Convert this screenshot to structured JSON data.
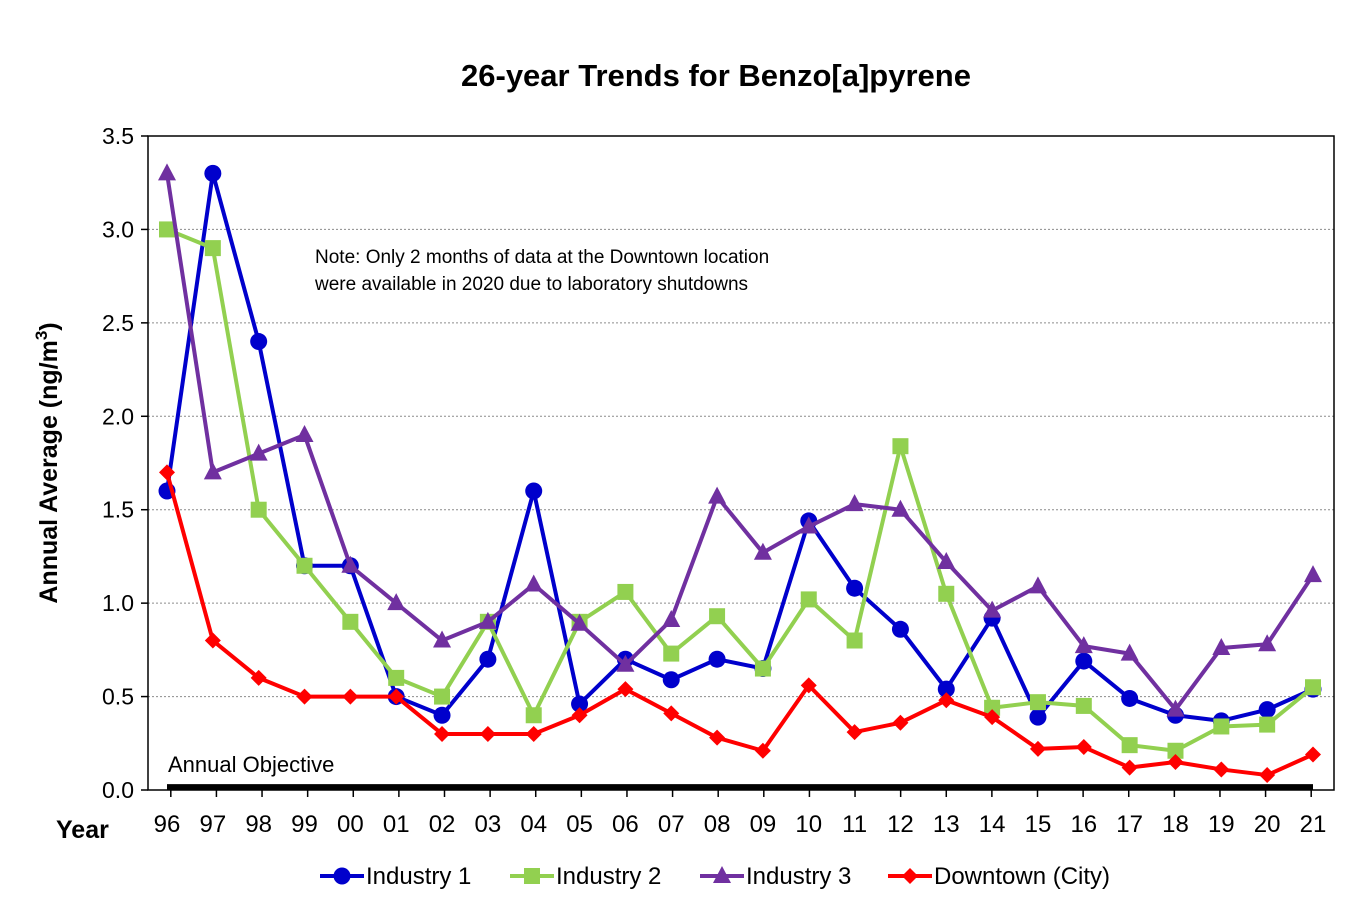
{
  "chart_data": {
    "type": "line",
    "title": "26-year Trends for Benzo[a]pyrene",
    "ylabel": "Annual Average (ng/m",
    "ylabel_superscript": "3",
    "ylabel_suffix": ")",
    "xlabel": "Year",
    "ylim": [
      0,
      3.5
    ],
    "yticks": [
      "0.0",
      "0.5",
      "1.0",
      "1.5",
      "2.0",
      "2.5",
      "3.0",
      "3.5"
    ],
    "grid": "horizontal dashed",
    "legend_position": "bottom",
    "categories": [
      "96",
      "97",
      "98",
      "99",
      "00",
      "01",
      "02",
      "03",
      "04",
      "05",
      "06",
      "07",
      "08",
      "09",
      "10",
      "11",
      "12",
      "13",
      "14",
      "15",
      "16",
      "17",
      "18",
      "19",
      "20",
      "21"
    ],
    "note_lines": [
      "Note: Only 2 months of data at the Downtown location",
      "were available in 2020 due to laboratory shutdowns"
    ],
    "annual_objective": {
      "label": "Annual Objective",
      "value": 0.01
    },
    "series": [
      {
        "name": "Industry 1",
        "color": "#0000CC",
        "marker": "circle",
        "values": [
          1.6,
          3.3,
          2.4,
          1.2,
          1.2,
          0.5,
          0.4,
          0.7,
          1.6,
          0.46,
          0.7,
          0.59,
          0.7,
          0.65,
          1.44,
          1.08,
          0.86,
          0.54,
          0.92,
          0.39,
          0.69,
          0.49,
          0.4,
          0.37,
          0.43,
          0.54
        ]
      },
      {
        "name": "Industry 2",
        "color": "#92D050",
        "marker": "square",
        "values": [
          3.0,
          2.9,
          1.5,
          1.2,
          0.9,
          0.6,
          0.5,
          0.9,
          0.4,
          0.9,
          1.06,
          0.73,
          0.93,
          0.65,
          1.02,
          0.8,
          1.84,
          1.05,
          0.44,
          0.47,
          0.45,
          0.24,
          0.21,
          0.34,
          0.35,
          0.55
        ]
      },
      {
        "name": "Industry 3",
        "color": "#7030A0",
        "marker": "triangle",
        "values": [
          3.3,
          1.7,
          1.8,
          1.9,
          1.2,
          1.0,
          0.8,
          0.9,
          1.1,
          0.89,
          0.67,
          0.91,
          1.57,
          1.27,
          1.41,
          1.53,
          1.5,
          1.22,
          0.96,
          1.09,
          0.77,
          0.73,
          0.43,
          0.76,
          0.78,
          1.15
        ]
      },
      {
        "name": "Downtown (City)",
        "color": "#FF0000",
        "marker": "diamond",
        "values": [
          1.7,
          0.8,
          0.6,
          0.5,
          0.5,
          0.5,
          0.3,
          0.3,
          0.3,
          0.4,
          0.54,
          0.41,
          0.28,
          0.21,
          0.56,
          0.31,
          0.36,
          0.48,
          0.39,
          0.22,
          0.23,
          0.12,
          0.15,
          0.11,
          0.08,
          0.19
        ]
      }
    ]
  }
}
